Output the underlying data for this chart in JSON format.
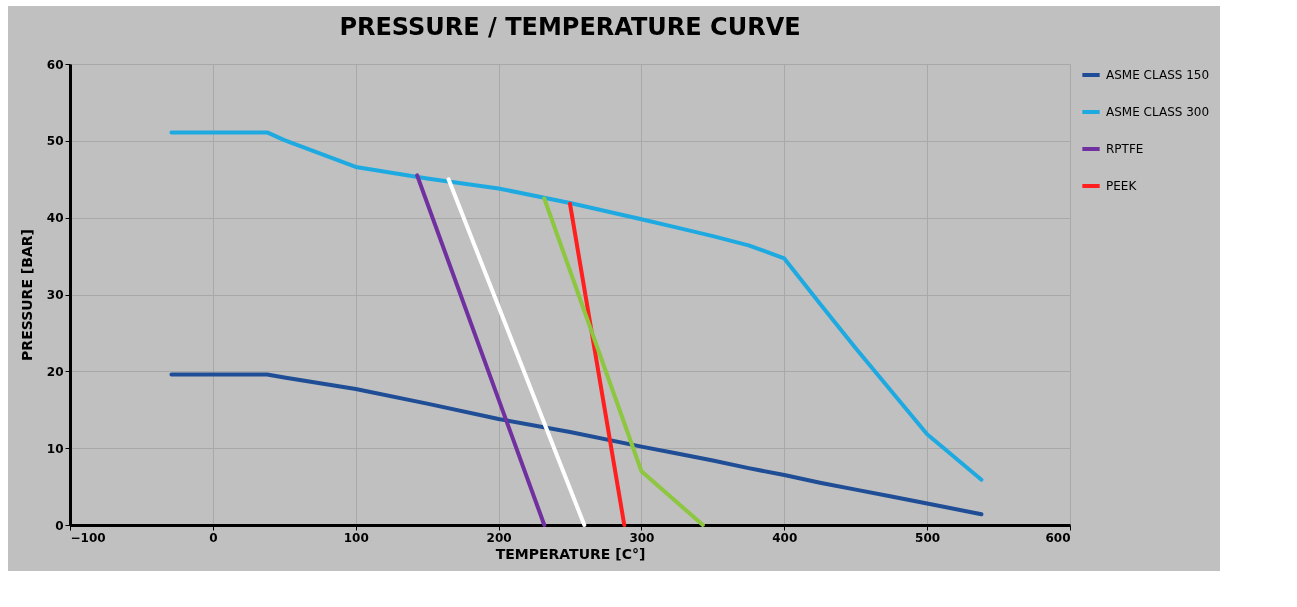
{
  "chart_data": {
    "type": "line",
    "title": "PRESSURE / TEMPERATURE CURVE",
    "xlabel": "TEMPERATURE [C°]",
    "ylabel": "PRESSURE [BAR]",
    "xlim": [
      -100,
      600
    ],
    "xticks": [
      -100,
      0,
      100,
      200,
      300,
      400,
      500,
      600
    ],
    "ylim": [
      0,
      60
    ],
    "yticks": [
      0,
      10,
      20,
      30,
      40,
      50,
      60
    ],
    "grid": true,
    "legend": "right",
    "marker": "none",
    "line_style": "solid",
    "series": [
      {
        "name": "ASME CLASS 150",
        "color": "#1f4e96",
        "x": [
          -29,
          38,
          50,
          100,
          150,
          200,
          250,
          300,
          325,
          350,
          375,
          400,
          425,
          450,
          475,
          500,
          538
        ],
        "values": [
          19.6,
          19.6,
          19.2,
          17.7,
          15.8,
          13.8,
          12.1,
          10.2,
          9.3,
          8.4,
          7.4,
          6.5,
          5.5,
          4.6,
          3.7,
          2.8,
          1.4
        ]
      },
      {
        "name": "ASME CLASS 300",
        "color": "#1eaae1",
        "x": [
          -29,
          38,
          50,
          100,
          150,
          200,
          250,
          300,
          325,
          350,
          375,
          400,
          425,
          450,
          475,
          500,
          538
        ],
        "values": [
          51.1,
          51.1,
          50.1,
          46.6,
          45.1,
          43.8,
          41.9,
          39.8,
          38.7,
          37.6,
          36.4,
          34.7,
          28.8,
          23.0,
          17.4,
          11.8,
          5.9
        ]
      },
      {
        "name": "RPTFE",
        "color": "#7030a0",
        "x": [
          143,
          232
        ],
        "values": [
          45.5,
          0
        ]
      },
      {
        "color": "#ffffff",
        "x": [
          165,
          260
        ],
        "values": [
          45,
          0
        ]
      },
      {
        "name": "PEEK",
        "color": "#ff1f1f",
        "x": [
          250,
          288
        ],
        "values": [
          41.8,
          0
        ]
      },
      {
        "color": "#8dc63f",
        "x": [
          232,
          300,
          343
        ],
        "values": [
          42.5,
          7,
          0
        ]
      }
    ]
  }
}
